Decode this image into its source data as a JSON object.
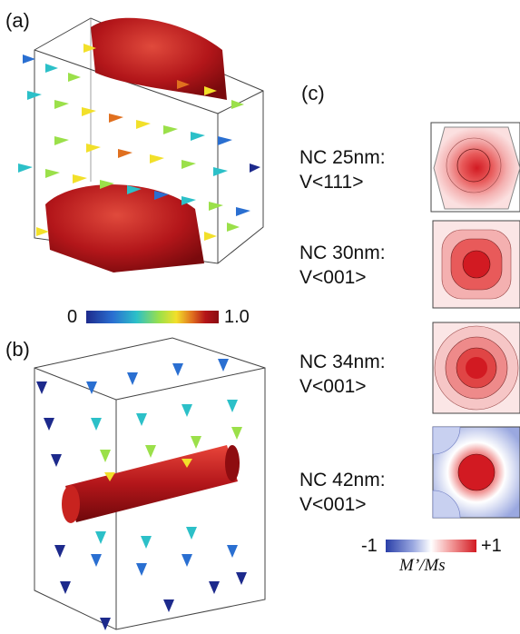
{
  "panels": {
    "a": "(a)",
    "b": "(b)",
    "c": "(c)"
  },
  "colorbar_top": {
    "min": "0",
    "max": "1.0",
    "stops": [
      "#1d2a8c",
      "#2a6fd1",
      "#2cc0c8",
      "#9be04a",
      "#f2e02a",
      "#e0701f",
      "#b41418",
      "#8a0c12"
    ]
  },
  "colorbar_bottom": {
    "min": "-1",
    "max": "+1",
    "quantity": "M’/Ms",
    "stops": [
      "#2a3fa8",
      "#9aa8e0",
      "#ffffff",
      "#f29a9a",
      "#d21a22"
    ]
  },
  "nanocubes": [
    {
      "line1": "NC 25nm:",
      "line2": "V<111>",
      "shape": "hexagon"
    },
    {
      "line1": "NC 30nm:",
      "line2": "V<001>",
      "shape": "square-rounded"
    },
    {
      "line1": "NC 34nm:",
      "line2": "V<001>",
      "shape": "circle"
    },
    {
      "line1": "NC 42nm:",
      "line2": "V<001>",
      "shape": "square-blue-corners"
    }
  ],
  "colors": {
    "vortex_red": "#b3161a",
    "frame": "#333333"
  }
}
